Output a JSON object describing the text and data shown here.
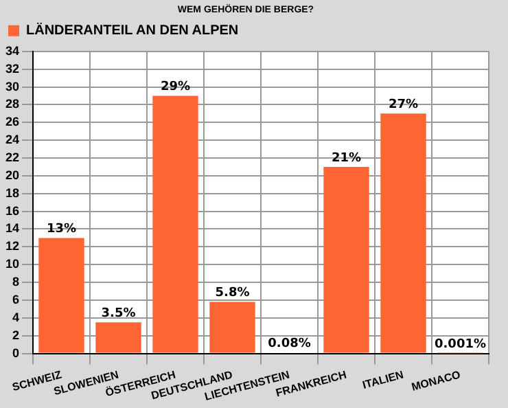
{
  "chart_data": {
    "type": "bar",
    "title": "WEM GEHÖREN DIE BERGE?",
    "categories": [
      "SCHWEIZ",
      "SLOWENIEN",
      "ÖSTERREICH",
      "DEUTSCHLAND",
      "LIECHTENSTEIN",
      "FRANKREICH",
      "ITALIEN",
      "MONACO"
    ],
    "series": [
      {
        "name": "LÄNDERANTEIL AN DEN ALPEN",
        "color": "#ff6633",
        "values": [
          13,
          3.5,
          29,
          5.8,
          0.08,
          21,
          27,
          0.001
        ],
        "value_labels": [
          "13%",
          "3.5%",
          "29%",
          "5.8%",
          "0.08%",
          "21%",
          "27%",
          "0.001%"
        ]
      }
    ],
    "ylim": [
      0,
      34
    ],
    "yticks": [
      0,
      2,
      4,
      6,
      8,
      10,
      12,
      14,
      16,
      18,
      20,
      22,
      24,
      26,
      28,
      30,
      32,
      34
    ],
    "grid": true,
    "legend": "top left"
  }
}
